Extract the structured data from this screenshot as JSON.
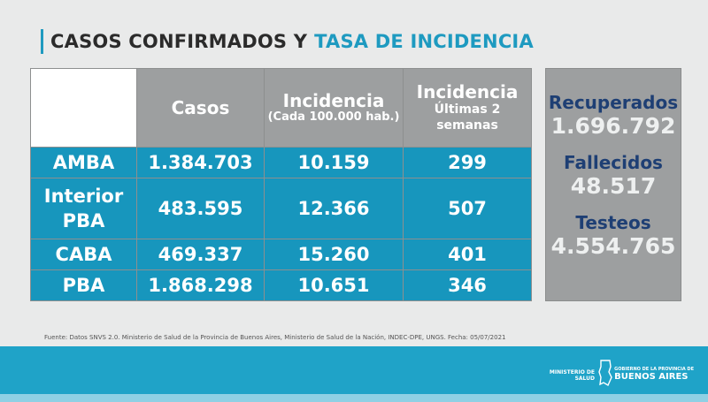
{
  "title": {
    "part1": "CASOS CONFIRMADOS Y",
    "part2": "TASA DE INCIDENCIA"
  },
  "table": {
    "headers": {
      "casos": "Casos",
      "incidencia": "Incidencia",
      "incidencia_sub": "(Cada 100.000 hab.)",
      "incidencia2": "Incidencia",
      "incidencia2_sub1": "Últimas 2",
      "incidencia2_sub2": "semanas"
    },
    "rows": [
      {
        "region": "AMBA",
        "region2": "",
        "casos": "1.384.703",
        "incidencia": "10.159",
        "incidencia2": "299"
      },
      {
        "region": "Interior",
        "region2": "PBA",
        "casos": "483.595",
        "incidencia": "12.366",
        "incidencia2": "507"
      },
      {
        "region": "CABA",
        "region2": "",
        "casos": "469.337",
        "incidencia": "15.260",
        "incidencia2": "401"
      },
      {
        "region": "PBA",
        "region2": "",
        "casos": "1.868.298",
        "incidencia": "10.651",
        "incidencia2": "346"
      }
    ]
  },
  "side": {
    "recuperados_label": "Recuperados",
    "recuperados_value": "1.696.792",
    "fallecidos_label": "Fallecidos",
    "fallecidos_value": "48.517",
    "testeos_label": "Testeos",
    "testeos_value": "4.554.765"
  },
  "source": "Fuente: Datos SNVS 2.0. Ministerio de Salud de la Provincia de Buenos Aires, Ministerio de Salud de la Nación, INDEC-DPE, UNGS. Fecha: 05/07/2021",
  "footer": {
    "ministerio1": "MINISTERIO DE",
    "ministerio2": "SALUD",
    "gov_small1": "GOBIERNO DE LA PROVINCIA DE",
    "gov_big": "BUENOS AIRES",
    "logo_icon": "province-shield-icon"
  },
  "colors": {
    "accent": "#1e9ac0",
    "row_bg": "#1796bd",
    "header_bg": "#9d9fa0",
    "side_label": "#1e3f74",
    "background": "#e9eaea"
  }
}
